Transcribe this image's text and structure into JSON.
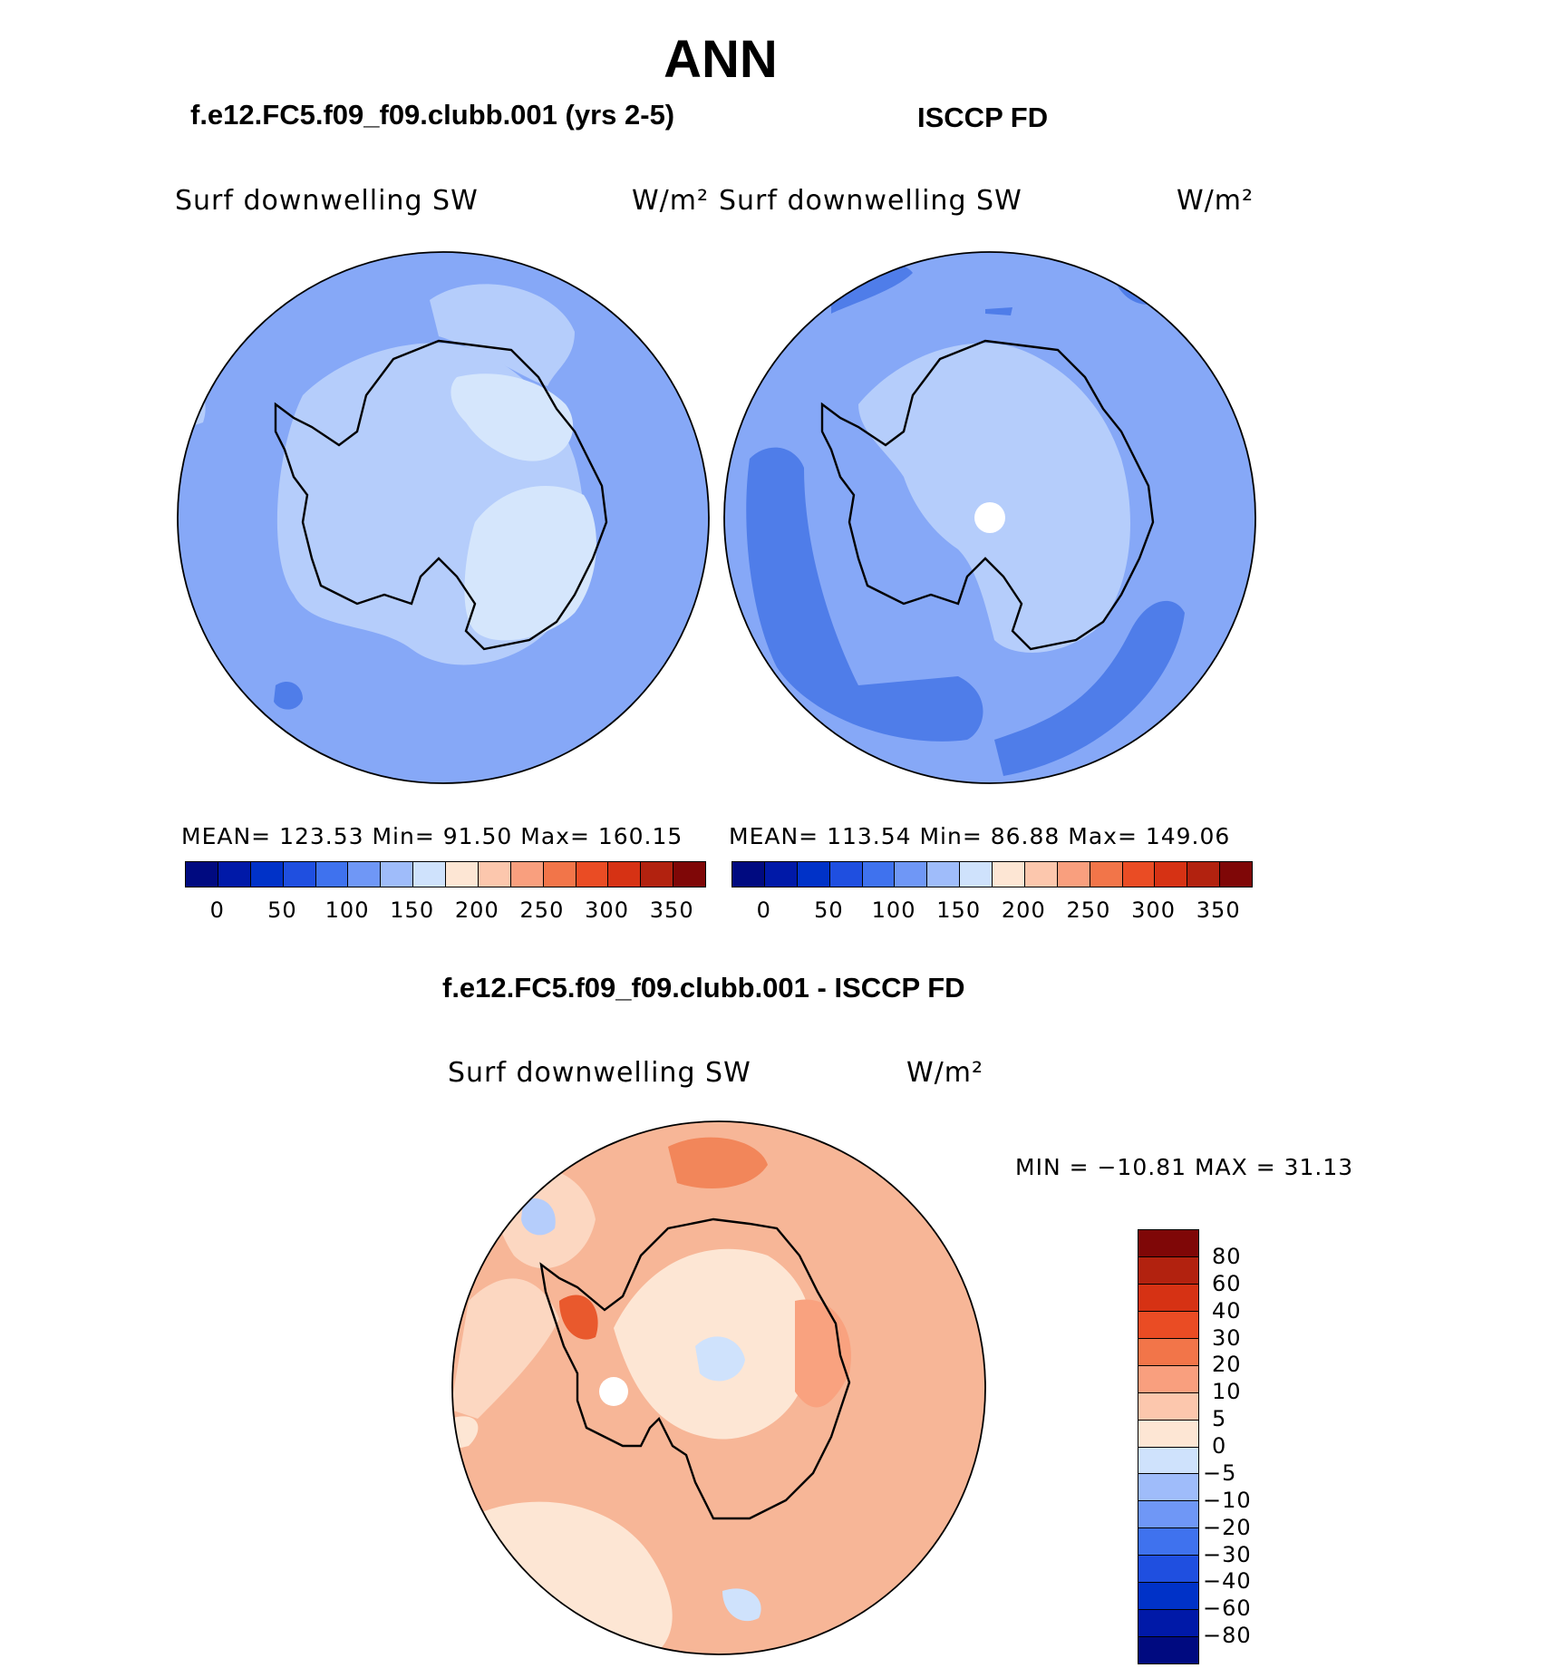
{
  "title": "ANN",
  "panels": {
    "model": {
      "case": "f.e12.FC5.f09_f09.clubb.001 (yrs 2-5)",
      "variable": "Surf downwelling SW",
      "units": "W/m²",
      "stats": "MEAN= 123.53   Min=   91.50   Max= 160.15"
    },
    "obs": {
      "case": "ISCCP FD",
      "variable": "Surf downwelling SW",
      "units": "W/m²",
      "stats": "MEAN= 113.54   Min=   86.88   Max= 149.06"
    },
    "diff": {
      "case": "f.e12.FC5.f09_f09.clubb.001 - ISCCP FD",
      "variable": "Surf downwelling SW",
      "units": "W/m²",
      "stats": "MIN = −10.81  MAX =   31.13"
    }
  },
  "colorbar_top": {
    "colors": [
      "#000a80",
      "#0019a8",
      "#0032c8",
      "#1f4fe0",
      "#3f72ee",
      "#6f97f6",
      "#9fbcfa",
      "#cfe2fc",
      "#fde6d4",
      "#fcc7ad",
      "#f99f7e",
      "#f27549",
      "#ea4c24",
      "#d63214",
      "#b2220f",
      "#7f0707"
    ],
    "labels": [
      "0",
      "50",
      "100",
      "150",
      "200",
      "250",
      "300",
      "350"
    ]
  },
  "colorbar_diff": {
    "colors": [
      "#7f0707",
      "#b2220f",
      "#d63214",
      "#ea4c24",
      "#f27549",
      "#f99f7e",
      "#fcc7ad",
      "#fde6d4",
      "#cfe2fc",
      "#9fbcfa",
      "#6f97f6",
      "#3f72ee",
      "#1f4fe0",
      "#0032c8",
      "#0019a8",
      "#000a80"
    ],
    "labels": [
      "80",
      "60",
      "40",
      "30",
      "20",
      "10",
      "5",
      "0",
      "−5",
      "−10",
      "−20",
      "−30",
      "−40",
      "−60",
      "−80"
    ]
  },
  "fields": {
    "model_bg": "#86a8f7",
    "obs_bg": "#86a8f7",
    "diff_bg": "#f7b697"
  }
}
